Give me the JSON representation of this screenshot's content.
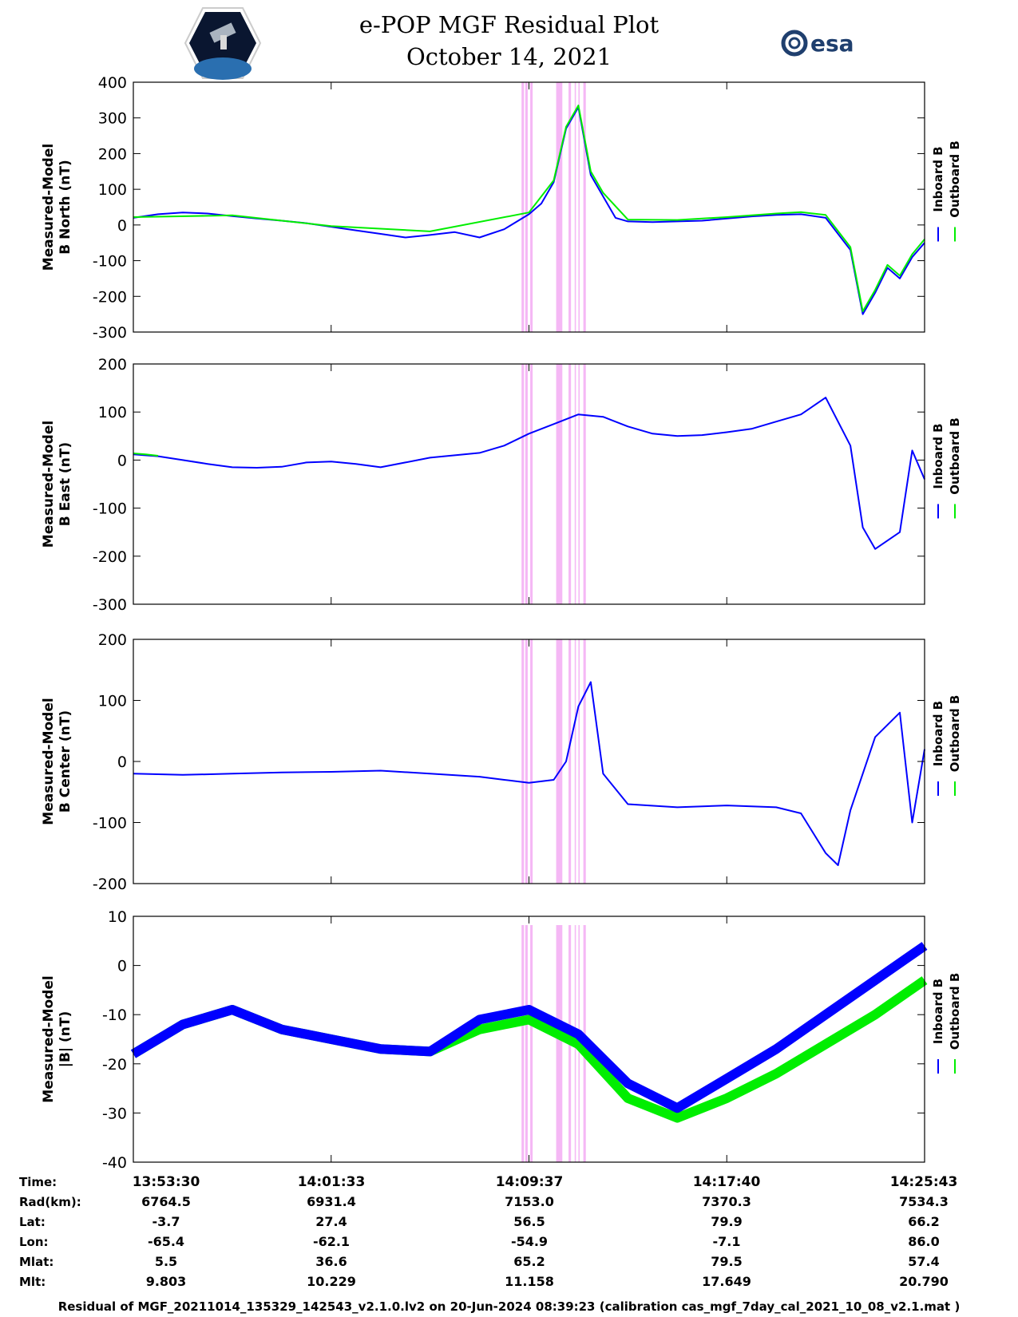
{
  "title_line1": "e-POP MGF Residual Plot",
  "title_line2": "October 14, 2021",
  "logos": {
    "left": "cassiope-mission-patch",
    "right": "esa-logo",
    "right_text": "esa"
  },
  "colors": {
    "inboard": "#0000ff",
    "outboard": "#00ee00",
    "shade": "#f5b8f5"
  },
  "chart_data": [
    {
      "type": "line",
      "ylabel_line1": "Measured-Model",
      "ylabel_line2": "B North (nT)",
      "ylim": [
        -300,
        400
      ],
      "yticks": [
        400,
        300,
        200,
        100,
        0,
        -100,
        -200,
        -300
      ],
      "legend": [
        "Inboard B",
        "Outboard B"
      ],
      "series": [
        {
          "name": "Inboard B",
          "color": "#0000ff",
          "x": [
            0,
            1,
            2,
            3,
            4,
            5,
            6,
            7,
            8,
            9,
            10,
            11,
            12,
            13,
            14,
            15,
            16,
            16.5,
            17,
            17.5,
            18,
            18.5,
            19,
            19.5,
            20,
            21,
            22,
            23,
            24,
            25,
            26,
            27,
            28,
            29,
            29.5,
            30,
            30.5,
            31,
            31.5,
            32
          ],
          "y": [
            20,
            30,
            35,
            32,
            25,
            18,
            12,
            5,
            -5,
            -15,
            -25,
            -35,
            -28,
            -20,
            -35,
            -12,
            30,
            60,
            120,
            270,
            330,
            140,
            80,
            20,
            10,
            8,
            10,
            12,
            18,
            24,
            28,
            30,
            20,
            -70,
            -250,
            -190,
            -120,
            -150,
            -90,
            -50
          ]
        },
        {
          "name": "Outboard B",
          "color": "#00ee00",
          "x": [
            0,
            4,
            8,
            12,
            16,
            17,
            17.5,
            18,
            18.5,
            19,
            20,
            22,
            24,
            26,
            27,
            28,
            29,
            29.5,
            30,
            30.5,
            31,
            31.5,
            32
          ],
          "y": [
            22,
            27,
            -3,
            -18,
            35,
            125,
            275,
            335,
            150,
            90,
            15,
            14,
            22,
            32,
            36,
            28,
            -62,
            -242,
            -182,
            -112,
            -142,
            -82,
            -40
          ]
        }
      ]
    },
    {
      "type": "line",
      "ylabel_line1": "Measured-Model",
      "ylabel_line2": "B East (nT)",
      "ylim": [
        -300,
        200
      ],
      "yticks": [
        200,
        100,
        0,
        -100,
        -200,
        -300
      ],
      "legend": [
        "Inboard B",
        "Outboard B"
      ],
      "series": [
        {
          "name": "Inboard B",
          "color": "#0000ff",
          "x": [
            0,
            1,
            2,
            3,
            4,
            5,
            6,
            7,
            8,
            9,
            10,
            11,
            12,
            13,
            14,
            15,
            16,
            17,
            18,
            19,
            20,
            21,
            22,
            23,
            24,
            25,
            26,
            27,
            28,
            29,
            29.5,
            30,
            31,
            31.5,
            32
          ],
          "y": [
            12,
            8,
            0,
            -8,
            -15,
            -16,
            -14,
            -5,
            -3,
            -8,
            -15,
            -5,
            5,
            10,
            15,
            30,
            55,
            75,
            95,
            90,
            70,
            55,
            50,
            52,
            58,
            65,
            80,
            95,
            130,
            30,
            -140,
            -185,
            -150,
            20,
            -40
          ]
        },
        {
          "name": "Outboard B",
          "color": "#00ee00",
          "x": [
            0,
            0.5,
            1
          ],
          "y": [
            14,
            12,
            9
          ]
        }
      ]
    },
    {
      "type": "line",
      "ylabel_line1": "Measured-Model",
      "ylabel_line2": "B Center (nT)",
      "ylim": [
        -200,
        200
      ],
      "yticks": [
        200,
        100,
        0,
        -100,
        -200
      ],
      "legend": [
        "Inboard B",
        "Outboard B"
      ],
      "series": [
        {
          "name": "Inboard B",
          "color": "#0000ff",
          "x": [
            0,
            2,
            4,
            6,
            8,
            10,
            12,
            14,
            15,
            16,
            17,
            17.5,
            18,
            18.5,
            19,
            20,
            22,
            24,
            26,
            27,
            28,
            28.5,
            29,
            29.5,
            30,
            31,
            31.5,
            32
          ],
          "y": [
            -20,
            -22,
            -20,
            -18,
            -17,
            -15,
            -20,
            -25,
            -30,
            -35,
            -30,
            0,
            90,
            130,
            -20,
            -70,
            -75,
            -72,
            -75,
            -85,
            -150,
            -170,
            -80,
            -20,
            40,
            80,
            -100,
            20
          ]
        }
      ]
    },
    {
      "type": "line",
      "ylabel_line1": "Measured-Model",
      "ylabel_line2": "|B| (nT)",
      "ylim": [
        -40,
        10
      ],
      "yticks": [
        10,
        0,
        -10,
        -20,
        -30,
        -40
      ],
      "legend": [
        "Inboard B",
        "Outboard B"
      ],
      "series": [
        {
          "name": "Outboard B",
          "color": "#00ee00",
          "x": [
            0,
            2,
            4,
            6,
            8,
            10,
            12,
            14,
            16,
            18,
            20,
            22,
            24,
            26,
            28,
            30,
            32
          ],
          "y": [
            -18,
            -12,
            -9,
            -13,
            -15,
            -17,
            -17.5,
            -13,
            -11,
            -16,
            -27,
            -31,
            -27,
            -22,
            -16,
            -10,
            -3
          ]
        },
        {
          "name": "Inboard B",
          "color": "#0000ff",
          "x": [
            0,
            2,
            4,
            6,
            8,
            10,
            12,
            14,
            16,
            18,
            20,
            22,
            24,
            26,
            28,
            30,
            32
          ],
          "y": [
            -18,
            -12,
            -9,
            -13,
            -15,
            -17,
            -17.5,
            -11,
            -9,
            -14,
            -24,
            -29,
            -23,
            -17,
            -10,
            -3,
            4
          ]
        }
      ]
    }
  ],
  "x_axis": {
    "xlim": [
      0,
      32
    ],
    "tick_positions": [
      0,
      8,
      16,
      24,
      32
    ],
    "shaded_intervals": [
      [
        15.7,
        15.8
      ],
      [
        15.85,
        15.95
      ],
      [
        16.05,
        16.15
      ],
      [
        17.1,
        17.35
      ],
      [
        17.6,
        17.7
      ],
      [
        17.85,
        17.9
      ],
      [
        18.0,
        18.05
      ],
      [
        18.2,
        18.3
      ]
    ]
  },
  "table": {
    "rows": [
      {
        "label": "Time:",
        "values": [
          "13:53:30",
          "14:01:33",
          "14:09:37",
          "14:17:40",
          "14:25:43"
        ]
      },
      {
        "label": "Rad(km):",
        "values": [
          "6764.5",
          "6931.4",
          "7153.0",
          "7370.3",
          "7534.3"
        ]
      },
      {
        "label": "Lat:",
        "values": [
          "-3.7",
          "27.4",
          "56.5",
          "79.9",
          "66.2"
        ]
      },
      {
        "label": "Lon:",
        "values": [
          "-65.4",
          "-62.1",
          "-54.9",
          "-7.1",
          "86.0"
        ]
      },
      {
        "label": "Mlat:",
        "values": [
          "5.5",
          "36.6",
          "65.2",
          "79.5",
          "57.4"
        ]
      },
      {
        "label": "Mlt:",
        "values": [
          "9.803",
          "10.229",
          "11.158",
          "17.649",
          "20.790"
        ]
      }
    ]
  },
  "footer": "Residual of MGF_20211014_135329_142543_v2.1.0.lv2 on 20-Jun-2024 08:39:23 (calibration cas_mgf_7day_cal_2021_10_08_v2.1.mat )"
}
